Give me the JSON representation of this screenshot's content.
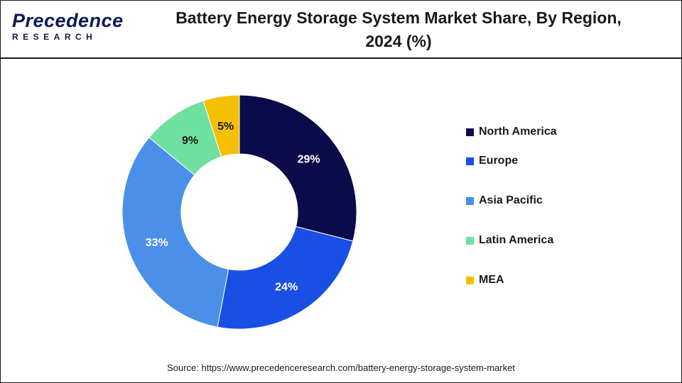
{
  "header": {
    "logo_top": "Precedence",
    "logo_bottom": "RESEARCH",
    "title_line1": "Battery Energy Storage System Market Share, By Region,",
    "title_line2": "2024 (%)"
  },
  "chart_data": {
    "type": "pie",
    "donut": true,
    "categories": [
      "North America",
      "Europe",
      "Asia Pacific",
      "Latin America",
      "MEA"
    ],
    "values": [
      29,
      24,
      33,
      9,
      5
    ],
    "labels": [
      "29%",
      "24%",
      "33%",
      "9%",
      "5%"
    ],
    "colors": [
      "#0b0b4a",
      "#1a4fe6",
      "#4a90e8",
      "#6ee0a0",
      "#f5c000"
    ],
    "label_colors": [
      "#ffffff",
      "#ffffff",
      "#ffffff",
      "#1a1a1a",
      "#1a1a1a"
    ],
    "legend_position": "right"
  },
  "source": "Source: https://www.precedenceresearch.com/battery-energy-storage-system-market"
}
